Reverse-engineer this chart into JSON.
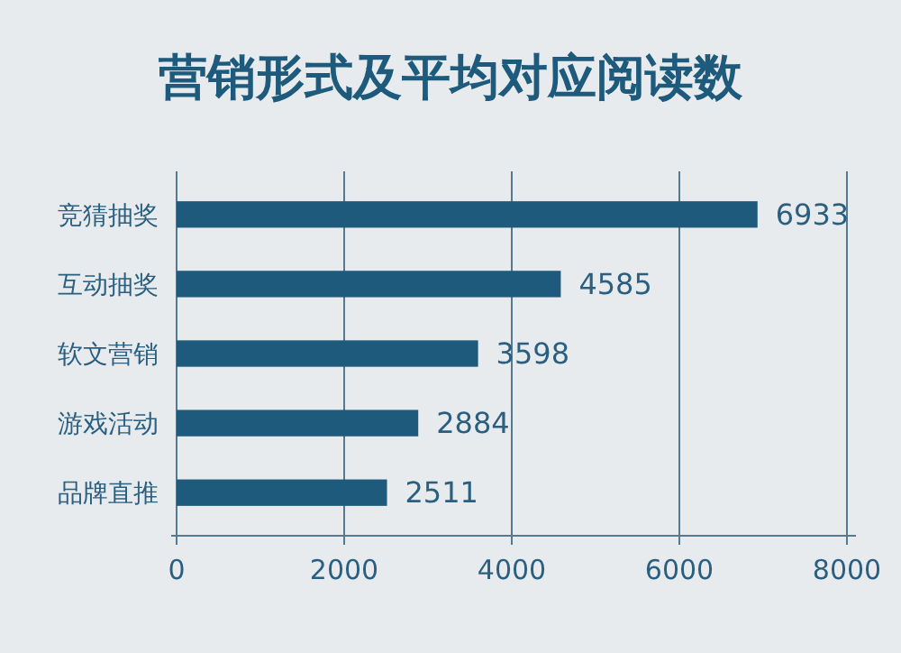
{
  "chart_data": {
    "type": "bar",
    "orientation": "horizontal",
    "title": "营销形式及平均对应阅读数",
    "categories": [
      "竞猜抽奖",
      "互动抽奖",
      "软文营销",
      "游戏活动",
      "品牌直推"
    ],
    "values": [
      6933,
      4585,
      3598,
      2884,
      2511
    ],
    "color": "#1d5a7c",
    "xlim": [
      0,
      8000
    ],
    "xticks": [
      0,
      2000,
      4000,
      6000,
      8000
    ],
    "grid": "x",
    "data_labels": true
  }
}
